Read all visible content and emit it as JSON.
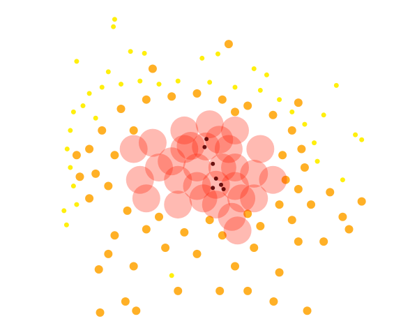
{
  "chart_data": {
    "type": "scatter",
    "xlim": [
      -3,
      3
    ],
    "ylim": [
      -2.6,
      2.6
    ],
    "series": [
      {
        "color": "#ffee00",
        "x": [
          -1.3,
          -1.32,
          -1.9,
          -1.05,
          -0.83,
          0.33,
          0.08,
          2.2,
          2.5,
          2.6,
          -2.06,
          -1.7,
          -1.5,
          -1.2,
          -0.9,
          -0.6,
          -0.3,
          0.2,
          0.6,
          1.0,
          1.3,
          1.5,
          1.7,
          1.85,
          -1.95,
          -2.0,
          -2.05,
          -2.0,
          -1.95,
          -1.9,
          -1.8,
          -1.6,
          1.9,
          2.3,
          -0.4,
          1.1,
          0.9,
          -1.4,
          2.0,
          -2.1
        ],
        "y": [
          2.4,
          2.28,
          1.72,
          1.88,
          1.85,
          1.84,
          1.77,
          1.33,
          0.53,
          0.45,
          -0.93,
          1.2,
          1.3,
          1.35,
          1.4,
          1.35,
          1.4,
          1.38,
          1.3,
          1.25,
          1.1,
          0.9,
          0.7,
          0.4,
          0.9,
          0.6,
          0.3,
          0.0,
          -0.3,
          -0.6,
          1.0,
          0.8,
          0.1,
          -0.2,
          -1.75,
          1.5,
          1.6,
          1.55,
          0.85,
          -0.7
        ]
      },
      {
        "color": "#ffa200",
        "x": [
          -1.53,
          -0.96,
          1.74,
          1.21,
          -1.13,
          0.36,
          -1.55,
          -1.0,
          0.6,
          1.3,
          -0.5,
          0.0,
          0.9,
          1.6,
          2.3,
          2.4,
          2.6,
          2.1,
          -1.3,
          -0.8,
          -0.2,
          0.4,
          1.0,
          1.5,
          -1.7,
          -1.6,
          -1.7,
          -1.5,
          -1.2,
          -0.8,
          -0.4,
          0.0,
          0.4,
          0.8,
          1.2,
          1.5,
          1.65,
          1.7,
          1.6,
          1.3,
          0.8,
          -1.1,
          -1.4,
          -1.3,
          -1.0,
          0.6,
          1.35,
          1.4,
          -0.6,
          0.2,
          -1.9,
          -1.85,
          0.5,
          -0.7,
          1.8,
          2.0,
          -0.3,
          0.8,
          -1.4,
          1.6
        ],
        "y": [
          -2.35,
          -2.32,
          -2.32,
          -2.17,
          -2.17,
          -2.0,
          -1.65,
          -1.6,
          -1.6,
          -1.7,
          -1.3,
          -1.4,
          -1.3,
          -1.2,
          -0.8,
          -1.0,
          -0.55,
          -0.4,
          -1.1,
          -1.0,
          -1.05,
          -1.1,
          -0.95,
          -0.85,
          -0.5,
          -0.1,
          0.3,
          0.6,
          0.95,
          1.1,
          1.15,
          1.2,
          1.1,
          1.0,
          0.85,
          0.6,
          0.3,
          0.0,
          -0.35,
          -0.6,
          -0.75,
          -0.7,
          -0.3,
          0.2,
          0.6,
          0.9,
          0.2,
          -0.2,
          -0.8,
          -0.85,
          0.2,
          -0.15,
          2.0,
          1.6,
          -0.6,
          -1.2,
          -2.0,
          -2.0,
          -1.4,
          1.05
        ]
      },
      {
        "color": "#ff1a00",
        "x": [
          0.14,
          0.3,
          -0.2,
          0.5,
          -0.3,
          0.0,
          0.6,
          0.9,
          -0.6,
          -0.9,
          -0.7,
          0.2,
          -0.2,
          0.6,
          1.0,
          0.3,
          -0.3,
          0.9,
          -1.0,
          1.2,
          0.0,
          0.4,
          -0.4,
          0.1,
          0.6,
          -0.1,
          0.35,
          0.7,
          -0.8,
          0.55,
          0.64
        ],
        "y": [
          0.34,
          -0.28,
          0.3,
          0.3,
          -0.2,
          -0.3,
          -0.3,
          -0.1,
          0.0,
          -0.2,
          0.4,
          0.7,
          0.6,
          0.6,
          0.3,
          -0.6,
          -0.6,
          -0.5,
          0.3,
          -0.2,
          0.0,
          0.0,
          0.1,
          -0.5,
          0.0,
          0.35,
          0.45,
          -0.5,
          -0.5,
          -0.8,
          -1.02
        ]
      },
      {
        "color": "#5a0000",
        "x": [
          0.15,
          0.12,
          0.3,
          0.38,
          0.25,
          0.25,
          0.42
        ],
        "y": [
          0.46,
          0.33,
          -0.18,
          -0.28,
          -0.33,
          0.06,
          -0.35
        ]
      }
    ]
  }
}
